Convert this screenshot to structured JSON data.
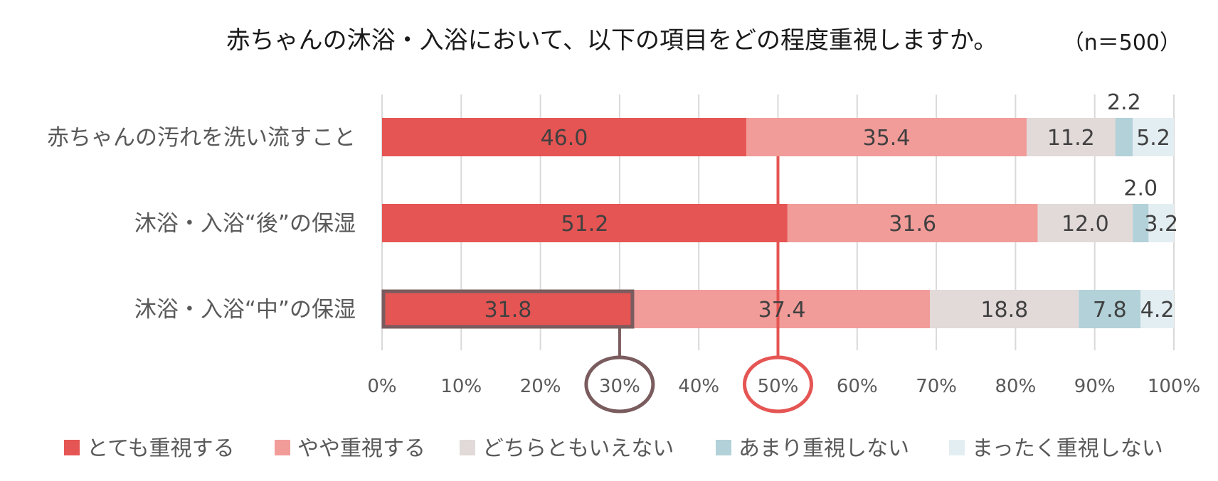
{
  "chart_data": {
    "type": "bar",
    "orientation": "horizontal",
    "stacked": true,
    "title": "赤ちゃんの沐浴・入浴において、以下の項目をどの程度重視しますか。",
    "sample_note": "（n＝500）",
    "categories": [
      "赤ちゃんの汚れを洗い流すこと",
      "沐浴・入浴“後”の保湿",
      "沐浴・入浴“中”の保湿"
    ],
    "series": [
      {
        "name": "とても重視する",
        "color": "#e55553",
        "values": [
          46.0,
          51.2,
          31.8
        ],
        "labels": [
          "46.0",
          "51.2",
          "31.8"
        ]
      },
      {
        "name": "やや重視する",
        "color": "#f19c99",
        "values": [
          35.4,
          31.6,
          37.4
        ],
        "labels": [
          "35.4",
          "31.6",
          "37.4"
        ]
      },
      {
        "name": "どちらともいえない",
        "color": "#e2d9d9",
        "values": [
          11.2,
          12.0,
          18.8
        ],
        "labels": [
          "11.2",
          "12.0",
          "18.8"
        ]
      },
      {
        "name": "あまり重視しない",
        "color": "#b2d1d9",
        "values": [
          2.2,
          2.0,
          7.8
        ],
        "labels": [
          "2.2",
          "2.0",
          "7.8"
        ]
      },
      {
        "name": "まったく重視しない",
        "color": "#e3eef2",
        "values": [
          5.2,
          3.2,
          4.2
        ],
        "labels": [
          "5.2",
          "3.2",
          "4.2"
        ]
      }
    ],
    "xlim": [
      0,
      100
    ],
    "x_ticks": [
      0,
      10,
      20,
      30,
      40,
      50,
      60,
      70,
      80,
      90,
      100
    ],
    "x_tick_labels": [
      "0%",
      "10%",
      "20%",
      "30%",
      "40%",
      "50%",
      "60%",
      "70%",
      "80%",
      "90%",
      "100%"
    ],
    "grid": true,
    "legend_position": "bottom",
    "annotations": [
      {
        "type": "circle-marker",
        "x": 30,
        "color": "#7a5c5e",
        "target_category": "沐浴・入浴“中”の保湿",
        "target_series": "とても重視する"
      },
      {
        "type": "circle-marker",
        "x": 50,
        "color": "#e55553",
        "line_through_categories": true
      }
    ]
  }
}
